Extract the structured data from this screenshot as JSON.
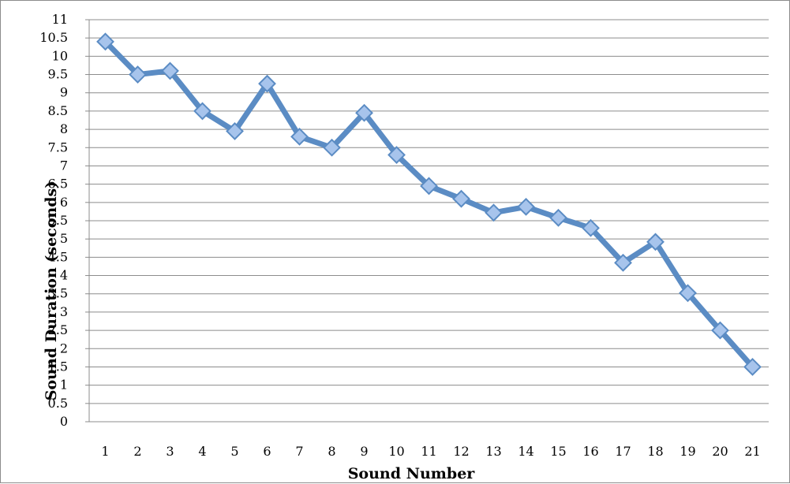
{
  "chart_data": {
    "type": "line",
    "title": "",
    "xlabel": "Sound Number",
    "ylabel": "Sound Duration (seconds)",
    "x": [
      1,
      2,
      3,
      4,
      5,
      6,
      7,
      8,
      9,
      10,
      11,
      12,
      13,
      14,
      15,
      16,
      17,
      18,
      19,
      20,
      21
    ],
    "series": [
      {
        "values": [
          10.4,
          9.5,
          9.6,
          8.5,
          7.95,
          9.25,
          7.8,
          7.5,
          8.45,
          7.3,
          6.45,
          6.1,
          5.72,
          5.88,
          5.58,
          5.3,
          4.35,
          4.92,
          3.52,
          2.5,
          1.5
        ]
      }
    ],
    "ylim": [
      0,
      11
    ],
    "yticks": [
      "0",
      "0.5",
      "1",
      "1.5",
      "2",
      "2.5",
      "3",
      "3.5",
      "4",
      "4.5",
      "5",
      "5.5",
      "6",
      "6.5",
      "7",
      "7.5",
      "8",
      "8.5",
      "9",
      "9.5",
      "10",
      "10.5",
      "11"
    ],
    "grid": true,
    "legend": "none",
    "colors": {
      "line": "#5b8cc4",
      "marker_fill": "#a7c4ec",
      "marker_stroke": "#5b8cc4",
      "grid": "#8c8c8c"
    }
  }
}
